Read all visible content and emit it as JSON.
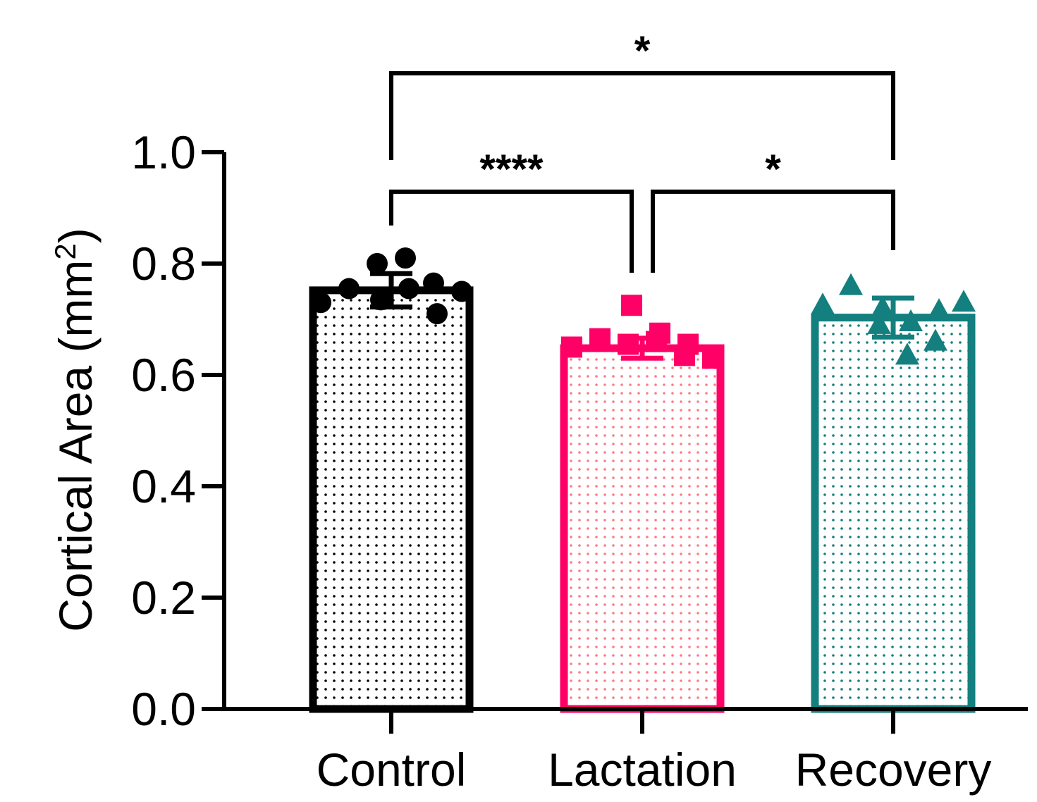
{
  "chart_data": {
    "type": "bar",
    "title": "",
    "xlabel": "",
    "ylabel": "Cortical  Area (mm",
    "ylabel_superscript": "2",
    "ylabel_close": ")",
    "ylim": [
      0,
      1.0
    ],
    "yticks": [
      0.0,
      0.2,
      0.4,
      0.6,
      0.8,
      1.0
    ],
    "ytick_labels": [
      "0.0",
      "0.2",
      "0.4",
      "0.6",
      "0.8",
      "1.0"
    ],
    "categories": [
      "Control",
      "Lactation",
      "Recovery"
    ],
    "values": [
      0.752,
      0.648,
      0.703
    ],
    "error": [
      0.03,
      0.018,
      0.035
    ],
    "colors": {
      "Control": "#000000",
      "Lactation": "#ff0066",
      "Recovery": "#137f7f"
    },
    "dot_colors": {
      "Control": "#000000",
      "Lactation": "#ff7a85",
      "Recovery": "#137f7f"
    },
    "markers": {
      "Control": "circle",
      "Lactation": "square",
      "Recovery": "triangle"
    },
    "points": {
      "Control": [
        0.73,
        0.755,
        0.8,
        0.735,
        0.81,
        0.755,
        0.765,
        0.71,
        0.75
      ],
      "Lactation": [
        0.65,
        0.665,
        0.655,
        0.725,
        0.66,
        0.675,
        0.635,
        0.655,
        0.63
      ],
      "Recovery": [
        0.725,
        0.76,
        0.69,
        0.72,
        0.635,
        0.695,
        0.66,
        0.715,
        0.73
      ]
    },
    "significance": [
      {
        "from": "Control",
        "to": "Lactation",
        "label": "****"
      },
      {
        "from": "Lactation",
        "to": "Recovery",
        "label": "*"
      },
      {
        "from": "Control",
        "to": "Recovery",
        "label": "*"
      }
    ],
    "grid": false,
    "legend": "none"
  }
}
